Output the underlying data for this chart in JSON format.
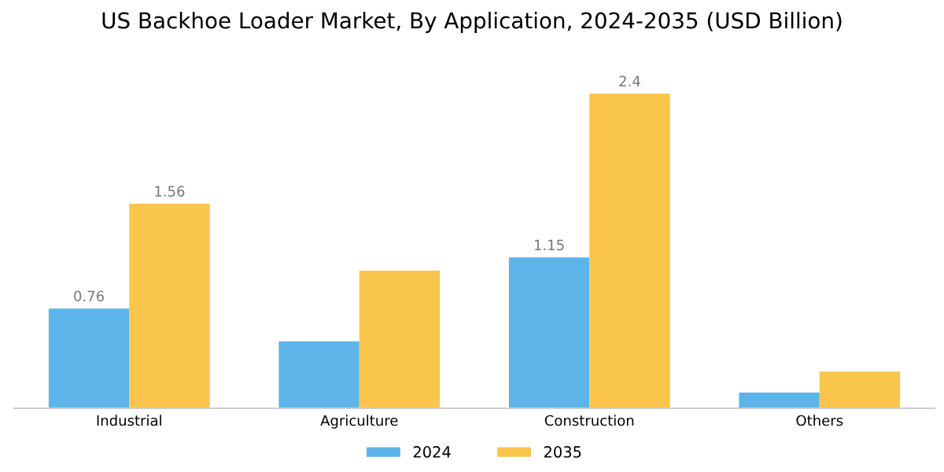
{
  "chart_data": {
    "type": "bar",
    "title": "US Backhoe Loader Market, By Application, 2024-2035 (USD Billion)",
    "categories": [
      "Industrial",
      "Agriculture",
      "Construction",
      "Others"
    ],
    "series": [
      {
        "name": "2024",
        "color": "#5db4e9",
        "values": [
          0.76,
          0.51,
          1.15,
          0.12
        ],
        "value_labels": [
          "0.76",
          null,
          "1.15",
          null
        ]
      },
      {
        "name": "2035",
        "color": "#f9c54b",
        "values": [
          1.56,
          1.05,
          2.4,
          0.28
        ],
        "value_labels": [
          "1.56",
          null,
          "2.4",
          null
        ]
      }
    ],
    "legend": "bottom",
    "grid": false
  }
}
